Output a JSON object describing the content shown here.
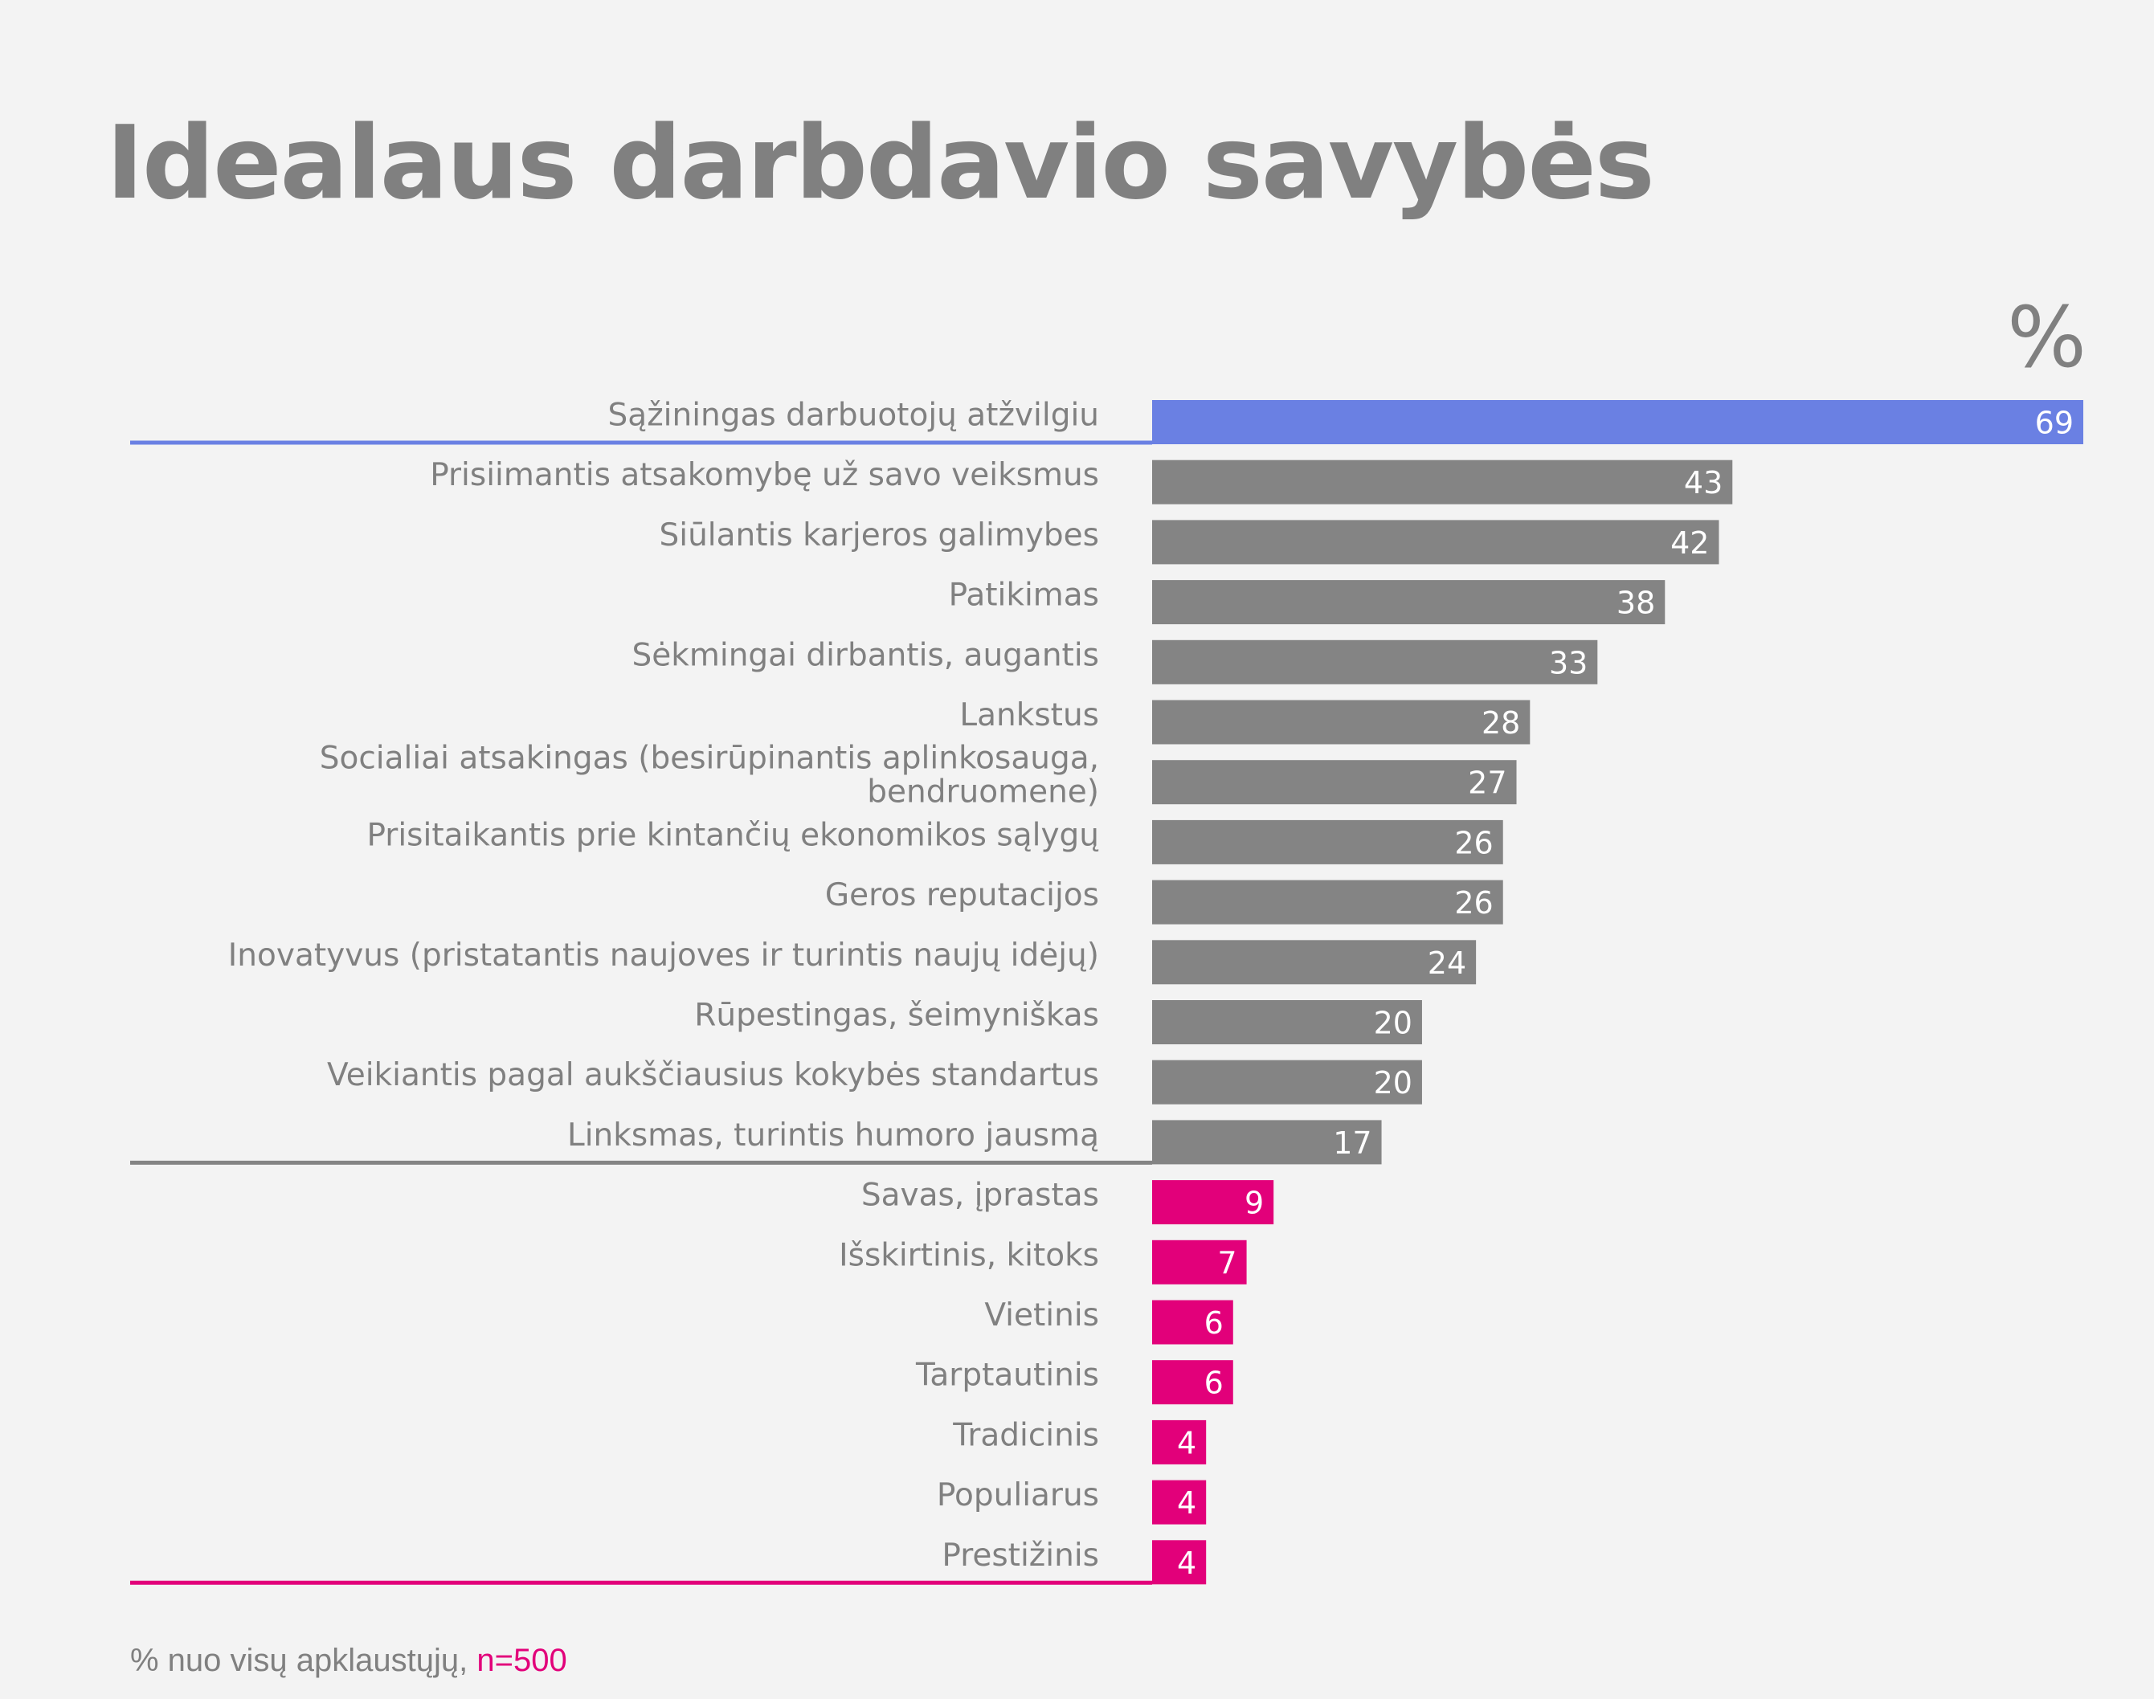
{
  "title": "Idealaus darbdavio savybės",
  "unit_label": "%",
  "footnote": {
    "text": "% nuo visų apklaustųjų, ",
    "n": "n=500"
  },
  "colors": {
    "top": "#6a80e3",
    "middle": "#848484",
    "bottom": "#e2007a",
    "label": "#808080",
    "value_text": "#ffffff"
  },
  "chart_data": {
    "type": "bar",
    "orientation": "horizontal",
    "xlim": [
      0,
      69
    ],
    "grid": false,
    "categories": [
      [
        "Sąžiningas darbuotojų atžvilgiu"
      ],
      [
        "Prisiimantis atsakomybę už savo veiksmus"
      ],
      [
        "Siūlantis karjeros galimybes"
      ],
      [
        "Patikimas"
      ],
      [
        "Sėkmingai dirbantis, augantis"
      ],
      [
        "Lankstus"
      ],
      [
        "Socialiai atsakingas (besirūpinantis aplinkosauga,",
        "bendruomene)"
      ],
      [
        "Prisitaikantis prie kintančių ekonomikos sąlygų"
      ],
      [
        "Geros reputacijos"
      ],
      [
        "Inovatyvus (pristatantis naujoves ir turintis naujų idėjų)"
      ],
      [
        "Rūpestingas, šeimyniškas"
      ],
      [
        "Veikiantis pagal aukščiausius kokybės standartus"
      ],
      [
        "Linksmas, turintis humoro jausmą"
      ],
      [
        "Savas, įprastas"
      ],
      [
        "Išskirtinis, kitoks"
      ],
      [
        "Vietinis"
      ],
      [
        "Tarptautinis"
      ],
      [
        "Tradicinis"
      ],
      [
        "Populiarus"
      ],
      [
        "Prestižinis"
      ]
    ],
    "values": [
      69,
      43,
      42,
      38,
      33,
      28,
      27,
      26,
      26,
      24,
      20,
      20,
      17,
      9,
      7,
      6,
      6,
      4,
      4,
      4
    ],
    "groups": [
      "top",
      "middle",
      "middle",
      "middle",
      "middle",
      "middle",
      "middle",
      "middle",
      "middle",
      "middle",
      "middle",
      "middle",
      "middle",
      "bottom",
      "bottom",
      "bottom",
      "bottom",
      "bottom",
      "bottom",
      "bottom"
    ]
  }
}
